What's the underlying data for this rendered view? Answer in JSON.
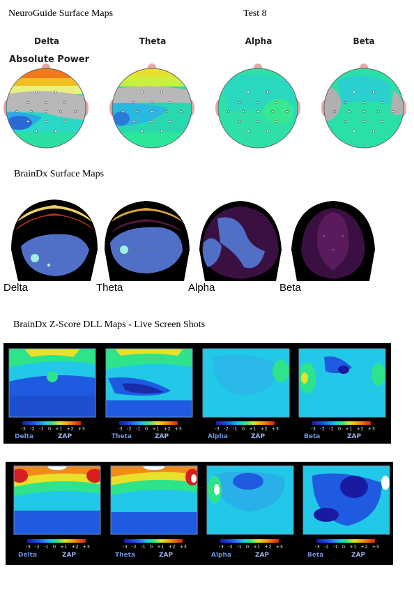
{
  "sections": {
    "neuroguide_title": "NeuroGuide Surface Maps",
    "test_label": "Test 8",
    "absolute_power": "Absolute Power",
    "braindx_title": "BrainDx Surface Maps",
    "zscore_title": "BrainDx Z-Score DLL Maps - Live Screen Shots"
  },
  "bands": [
    "Delta",
    "Theta",
    "Alpha",
    "Beta"
  ],
  "zscale": {
    "ticks": [
      "-3",
      "-2",
      "-1",
      "0",
      "+1",
      "+2",
      "+3"
    ],
    "zap": "ZAP"
  },
  "colors": {
    "panel_bg": "#000000",
    "map_blue": "#1e5be0",
    "map_cyan": "#22c8e8",
    "map_green": "#2ee38a",
    "map_yellow": "#e8e02a",
    "map_orange": "#f08a1c",
    "map_red": "#d81e1e",
    "braindx_purple": "#3a1042",
    "braindx_blue": "#5068c8"
  }
}
